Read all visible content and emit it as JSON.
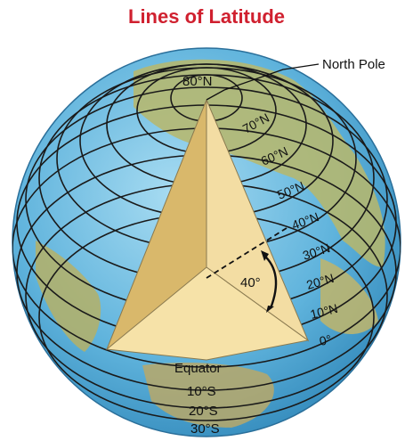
{
  "title": "Lines of Latitude",
  "colors": {
    "title": "#d0202f",
    "ocean": "#5fb3dc",
    "land": "#b9b76a",
    "wedge_light": "#f6e2a8",
    "wedge_mid": "#e8cd86",
    "wedge_dark": "#d9b86b"
  },
  "labels": {
    "north_pole": "North Pole",
    "equator": "Equator",
    "angle": "40°"
  },
  "latitudes_north": [
    "80°N",
    "70°N",
    "60°N",
    "50°N",
    "40°N",
    "30°N",
    "20°N",
    "10°N",
    "0°"
  ],
  "latitudes_south": [
    "10°S",
    "20°S",
    "30°S"
  ]
}
